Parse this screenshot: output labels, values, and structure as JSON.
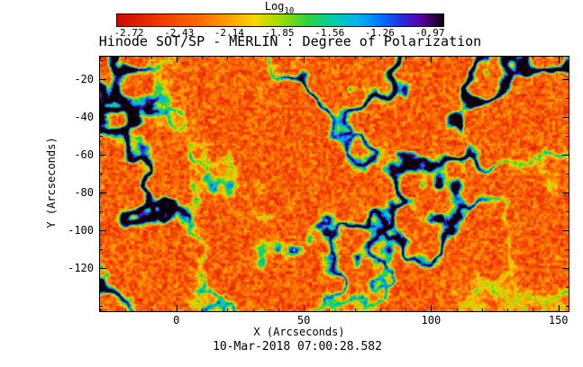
{
  "figure": {
    "title": "Hinode SOT/SP - MERLIN : Degree of Polarization",
    "caption": "10-Mar-2018 07:00:28.582"
  },
  "colorbar": {
    "label_base": "Log",
    "label_sub": "10",
    "tick_labels": [
      "-2.72",
      "-2.43",
      "-2.14",
      "-1.85",
      "-1.56",
      "-1.26",
      "-0.97"
    ]
  },
  "chart_data": {
    "type": "heatmap",
    "title": "Hinode SOT/SP - MERLIN : Degree of Polarization",
    "xlabel": "X (Arcseconds)",
    "ylabel": "Y (Arcseconds)",
    "xlim": [
      -30,
      154
    ],
    "ylim": [
      -143,
      -8
    ],
    "x_ticks": [
      0,
      50,
      100,
      150
    ],
    "x_minor_step": 10,
    "y_ticks": [
      -20,
      -40,
      -60,
      -80,
      -100,
      -120
    ],
    "y_minor_step": 10,
    "grid": false,
    "colorbar": {
      "label": "Log10",
      "position": "top",
      "ticks": [
        -2.72,
        -2.43,
        -2.14,
        -1.85,
        -1.56,
        -1.26,
        -0.97
      ],
      "value_range": [
        -2.72,
        -0.97
      ]
    },
    "timestamp": "10-Mar-2018 07:00:28.582",
    "description": "Log10 degree-of-polarization map from the Hinode SOT/SP MERLIN inversion. The field of view is dominated by low polarization (red/orange, about -2.7 to -2.2) with a filamentary network and patches of higher polarization (yellow/green/cyan/blue, about -1.8 up to ~ -1.0) tracing the magnetic network.",
    "colormap": [
      [
        0.0,
        "#c80b00"
      ],
      [
        0.12,
        "#f03400"
      ],
      [
        0.24,
        "#ff6600"
      ],
      [
        0.34,
        "#ff9e00"
      ],
      [
        0.42,
        "#f8d800"
      ],
      [
        0.5,
        "#9fdc00"
      ],
      [
        0.58,
        "#2fd43c"
      ],
      [
        0.66,
        "#00cfa6"
      ],
      [
        0.74,
        "#00b2ef"
      ],
      [
        0.81,
        "#0070ff"
      ],
      [
        0.87,
        "#2330dd"
      ],
      [
        0.93,
        "#5a00a6"
      ],
      [
        1.0,
        "#0b0009"
      ]
    ]
  }
}
